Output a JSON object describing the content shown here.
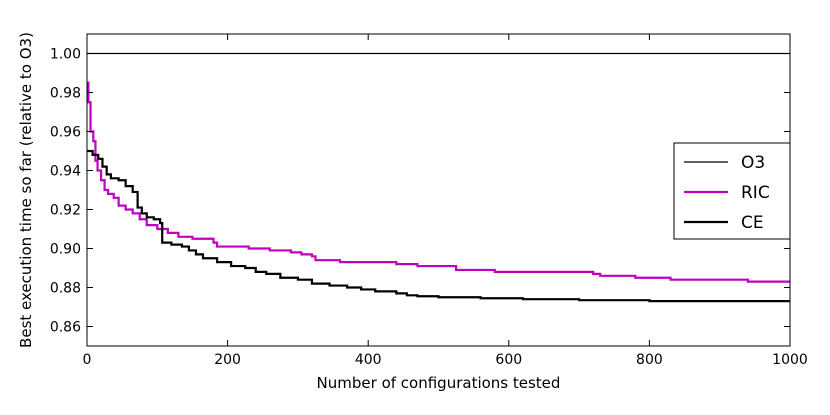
{
  "chart_data": {
    "type": "line",
    "title": "",
    "xlabel": "Number of configurations tested",
    "ylabel": "Best execution time so far (relative to O3)",
    "xlim": [
      0,
      1000
    ],
    "ylim": [
      0.85,
      1.01
    ],
    "xticks": [
      0,
      200,
      400,
      600,
      800,
      1000
    ],
    "yticks": [
      0.86,
      0.88,
      0.9,
      0.92,
      0.94,
      0.96,
      0.98,
      1.0
    ],
    "xtick_labels": [
      "0",
      "200",
      "400",
      "600",
      "800",
      "1000"
    ],
    "ytick_labels": [
      "0.86",
      "0.88",
      "0.90",
      "0.92",
      "0.94",
      "0.96",
      "0.98",
      "1.00"
    ],
    "grid": false,
    "legend_position": "center-right",
    "series": [
      {
        "name": "O3",
        "color": "#000000",
        "width": 1.2,
        "step": false,
        "points": [
          [
            0,
            1.0
          ],
          [
            1000,
            1.0
          ]
        ]
      },
      {
        "name": "RIC",
        "color": "#bf00bf",
        "width": 2.2,
        "step": true,
        "points": [
          [
            0,
            0.985
          ],
          [
            2,
            0.975
          ],
          [
            5,
            0.96
          ],
          [
            9,
            0.955
          ],
          [
            12,
            0.945
          ],
          [
            15,
            0.94
          ],
          [
            20,
            0.935
          ],
          [
            25,
            0.93
          ],
          [
            30,
            0.928
          ],
          [
            38,
            0.926
          ],
          [
            45,
            0.922
          ],
          [
            55,
            0.92
          ],
          [
            65,
            0.918
          ],
          [
            75,
            0.915
          ],
          [
            85,
            0.912
          ],
          [
            100,
            0.91
          ],
          [
            115,
            0.908
          ],
          [
            130,
            0.906
          ],
          [
            150,
            0.905
          ],
          [
            180,
            0.903
          ],
          [
            185,
            0.901
          ],
          [
            230,
            0.9
          ],
          [
            260,
            0.899
          ],
          [
            290,
            0.898
          ],
          [
            305,
            0.897
          ],
          [
            320,
            0.896
          ],
          [
            325,
            0.894
          ],
          [
            360,
            0.893
          ],
          [
            420,
            0.893
          ],
          [
            440,
            0.892
          ],
          [
            470,
            0.891
          ],
          [
            525,
            0.889
          ],
          [
            580,
            0.888
          ],
          [
            620,
            0.888
          ],
          [
            650,
            0.888
          ],
          [
            720,
            0.887
          ],
          [
            730,
            0.886
          ],
          [
            780,
            0.885
          ],
          [
            830,
            0.884
          ],
          [
            940,
            0.883
          ],
          [
            1000,
            0.883
          ]
        ]
      },
      {
        "name": "CE",
        "color": "#000000",
        "width": 2.2,
        "step": true,
        "points": [
          [
            0,
            0.95
          ],
          [
            8,
            0.948
          ],
          [
            16,
            0.946
          ],
          [
            22,
            0.942
          ],
          [
            28,
            0.938
          ],
          [
            34,
            0.936
          ],
          [
            45,
            0.935
          ],
          [
            55,
            0.932
          ],
          [
            65,
            0.929
          ],
          [
            72,
            0.921
          ],
          [
            78,
            0.918
          ],
          [
            85,
            0.916
          ],
          [
            95,
            0.915
          ],
          [
            104,
            0.913
          ],
          [
            107,
            0.903
          ],
          [
            120,
            0.902
          ],
          [
            135,
            0.901
          ],
          [
            145,
            0.899
          ],
          [
            155,
            0.897
          ],
          [
            165,
            0.895
          ],
          [
            185,
            0.893
          ],
          [
            205,
            0.891
          ],
          [
            225,
            0.89
          ],
          [
            240,
            0.888
          ],
          [
            255,
            0.887
          ],
          [
            275,
            0.885
          ],
          [
            300,
            0.884
          ],
          [
            320,
            0.882
          ],
          [
            345,
            0.881
          ],
          [
            370,
            0.88
          ],
          [
            390,
            0.879
          ],
          [
            410,
            0.878
          ],
          [
            440,
            0.877
          ],
          [
            455,
            0.876
          ],
          [
            470,
            0.8755
          ],
          [
            500,
            0.875
          ],
          [
            560,
            0.8745
          ],
          [
            620,
            0.874
          ],
          [
            700,
            0.8735
          ],
          [
            800,
            0.873
          ],
          [
            1000,
            0.873
          ]
        ]
      }
    ]
  }
}
